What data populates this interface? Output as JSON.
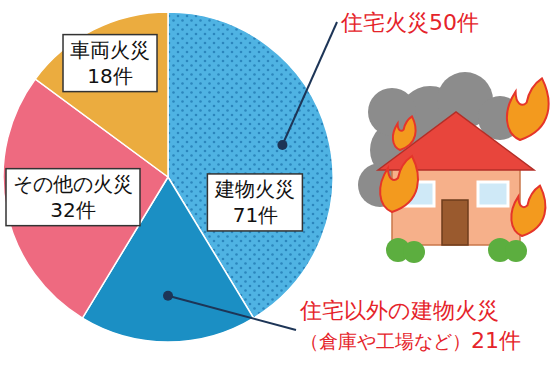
{
  "chart_data": {
    "type": "pie",
    "categories": [
      "住宅火災",
      "住宅以外の建物火災",
      "その他の火災",
      "車両火災"
    ],
    "values": [
      50,
      21,
      32,
      18
    ],
    "value_labels": [
      "50件",
      "21件",
      "32件",
      "18件"
    ],
    "notes": [
      null,
      "（倉庫や工場など）",
      null,
      null
    ],
    "colors": [
      "#4fb3e3",
      "#1b8fc4",
      "#ee6a80",
      "#ebac3f"
    ],
    "groups": [
      {
        "label": "建物火災",
        "value": 71,
        "value_label": "71件",
        "members": [
          0,
          1
        ]
      }
    ],
    "data_labels": true
  }
}
